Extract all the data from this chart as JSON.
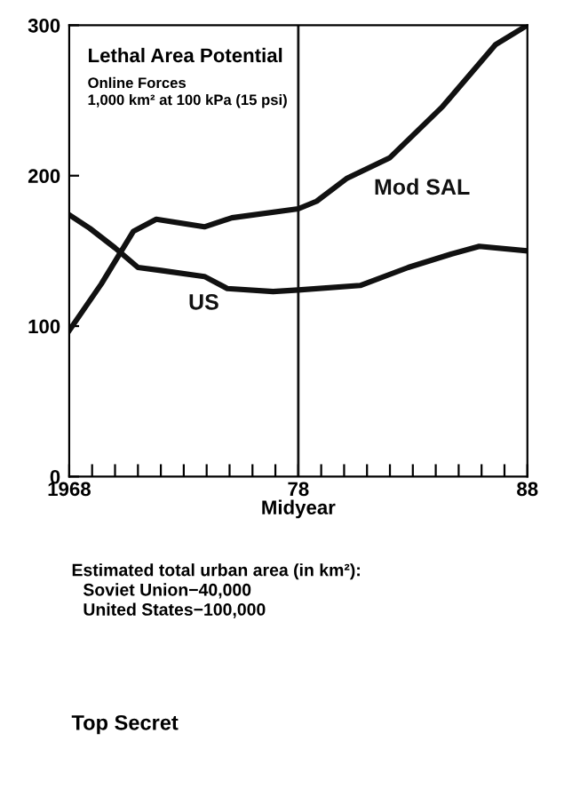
{
  "chart_data": {
    "type": "line",
    "title": "Lethal Area Potential",
    "subtitle": "Online Forces\n1,000 km² at 100 kPa (15 psi)",
    "xlabel": "Midyear",
    "series": [
      {
        "name": "Mod SAL",
        "color": "#111111",
        "x": [
          1968,
          1969.4,
          1970.8,
          1971.8,
          1973.9,
          1975.1,
          1978,
          1978.8,
          1980.1,
          1982,
          1984.3,
          1986.6,
          1988
        ],
        "values": [
          97,
          128,
          163,
          171,
          166,
          172,
          178,
          183,
          198,
          212,
          246,
          287,
          300
        ]
      },
      {
        "name": "US",
        "color": "#111111",
        "x": [
          1968,
          1968.9,
          1970,
          1971,
          1972,
          1973.9,
          1974.9,
          1976.9,
          1978,
          1980.7,
          1982.8,
          1984.7,
          1985.9,
          1988
        ],
        "values": [
          174,
          165,
          152,
          139,
          137,
          133,
          125,
          123,
          124,
          127,
          139,
          148,
          153,
          150
        ]
      }
    ],
    "xlim": [
      1968,
      1988
    ],
    "ylim": [
      0,
      300
    ],
    "xticks": [
      {
        "value": 1968,
        "label": "1968"
      },
      {
        "value": 1969,
        "label": null
      },
      {
        "value": 1970,
        "label": null
      },
      {
        "value": 1971,
        "label": null
      },
      {
        "value": 1972,
        "label": null
      },
      {
        "value": 1973,
        "label": null
      },
      {
        "value": 1974,
        "label": null
      },
      {
        "value": 1975,
        "label": null
      },
      {
        "value": 1976,
        "label": null
      },
      {
        "value": 1977,
        "label": null
      },
      {
        "value": 1978,
        "label": "78"
      },
      {
        "value": 1979,
        "label": null
      },
      {
        "value": 1980,
        "label": null
      },
      {
        "value": 1981,
        "label": null
      },
      {
        "value": 1982,
        "label": null
      },
      {
        "value": 1983,
        "label": null
      },
      {
        "value": 1984,
        "label": null
      },
      {
        "value": 1985,
        "label": null
      },
      {
        "value": 1986,
        "label": null
      },
      {
        "value": 1987,
        "label": null
      },
      {
        "value": 1988,
        "label": "88"
      }
    ],
    "yticks": [
      0,
      100,
      200,
      300
    ],
    "ref_lines": [
      {
        "axis": "x",
        "value": 1978,
        "color": "#111111"
      }
    ],
    "annotations": [
      "Estimated total urban area (in km²):",
      "Soviet Union−40,000",
      "United States−100,000",
      "Top Secret"
    ],
    "grid": false,
    "legend": false
  }
}
